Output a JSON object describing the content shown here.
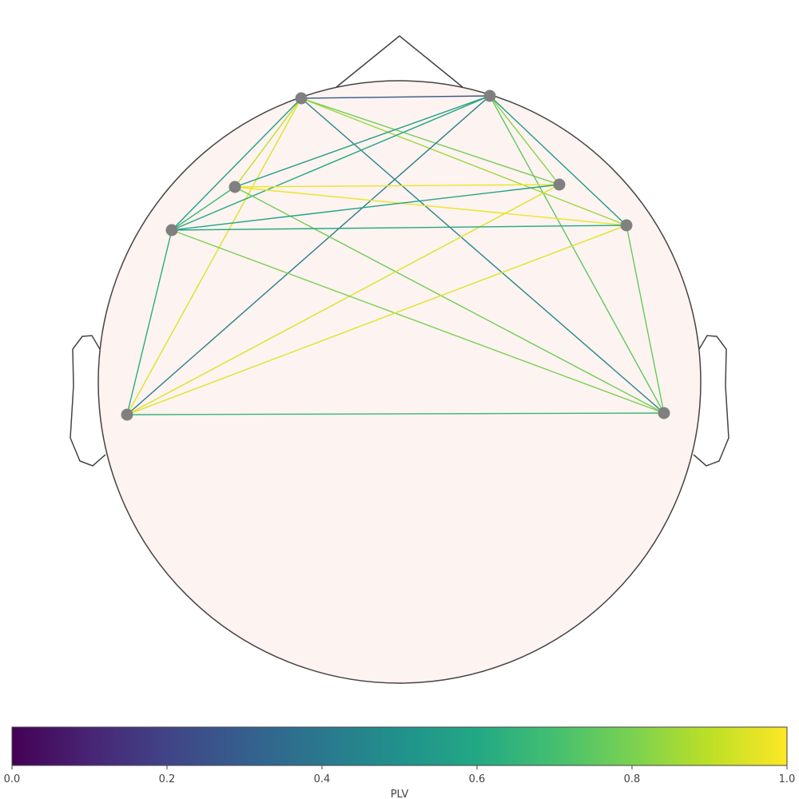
{
  "chart_data": {
    "type": "connectivity-topomap",
    "colorbar": {
      "label": "PLV",
      "colormap": "viridis",
      "range": [
        0.0,
        1.0
      ],
      "ticks": [
        {
          "value": 0.0,
          "label": "0.0"
        },
        {
          "value": 0.2,
          "label": "0.2"
        },
        {
          "value": 0.4,
          "label": "0.4"
        },
        {
          "value": 0.6,
          "label": "0.6"
        },
        {
          "value": 0.8,
          "label": "0.8"
        },
        {
          "value": 1.0,
          "label": "1.0"
        }
      ]
    },
    "nodes": [
      {
        "id": 0
      },
      {
        "id": 1
      },
      {
        "id": 2
      },
      {
        "id": 3
      },
      {
        "id": 4
      },
      {
        "id": 5
      },
      {
        "id": 6
      },
      {
        "id": 7
      }
    ],
    "connections": [
      {
        "a": 0,
        "b": 1,
        "plv": 0.27
      },
      {
        "a": 0,
        "b": 2,
        "plv": 0.9
      },
      {
        "a": 0,
        "b": 3,
        "plv": 0.78
      },
      {
        "a": 0,
        "b": 4,
        "plv": 0.55
      },
      {
        "a": 0,
        "b": 5,
        "plv": 0.85
      },
      {
        "a": 0,
        "b": 6,
        "plv": 0.95
      },
      {
        "a": 0,
        "b": 7,
        "plv": 0.45
      },
      {
        "a": 1,
        "b": 2,
        "plv": 0.55
      },
      {
        "a": 1,
        "b": 3,
        "plv": 0.82
      },
      {
        "a": 1,
        "b": 4,
        "plv": 0.6
      },
      {
        "a": 1,
        "b": 5,
        "plv": 0.53
      },
      {
        "a": 1,
        "b": 6,
        "plv": 0.42
      },
      {
        "a": 1,
        "b": 7,
        "plv": 0.75
      },
      {
        "a": 2,
        "b": 3,
        "plv": 0.97
      },
      {
        "a": 2,
        "b": 5,
        "plv": 0.97
      },
      {
        "a": 2,
        "b": 4,
        "plv": 0.68
      },
      {
        "a": 2,
        "b": 7,
        "plv": 0.78
      },
      {
        "a": 3,
        "b": 4,
        "plv": 0.58
      },
      {
        "a": 3,
        "b": 6,
        "plv": 0.95
      },
      {
        "a": 4,
        "b": 5,
        "plv": 0.6
      },
      {
        "a": 4,
        "b": 6,
        "plv": 0.62
      },
      {
        "a": 4,
        "b": 7,
        "plv": 0.8
      },
      {
        "a": 5,
        "b": 6,
        "plv": 0.95
      },
      {
        "a": 5,
        "b": 7,
        "plv": 0.76
      },
      {
        "a": 6,
        "b": 7,
        "plv": 0.66
      }
    ]
  }
}
